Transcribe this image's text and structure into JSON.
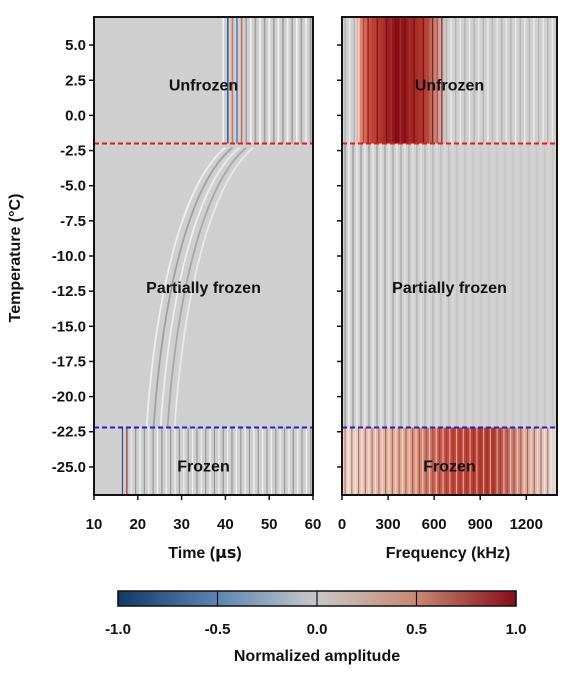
{
  "chart_data": [
    {
      "type": "heatmap",
      "panel": "time",
      "xlabel_prefix": "Time (",
      "xlabel_unit": "μs",
      "xlabel_suffix": ")",
      "ylabel": "Temperature (°C)",
      "xlim": [
        10,
        60
      ],
      "ylim": [
        -27,
        7
      ],
      "xticks": [
        10,
        20,
        30,
        40,
        50,
        60
      ],
      "yticks": [
        5.0,
        2.5,
        0.0,
        -2.5,
        -5.0,
        -7.5,
        -10.0,
        -12.5,
        -15.0,
        -17.5,
        -20.0,
        -22.5,
        -25.0
      ],
      "ytick_labels": [
        "5.0",
        "2.5",
        "0.0",
        "-2.5",
        "-5.0",
        "-7.5",
        "-10.0",
        "-12.5",
        "-15.0",
        "-17.5",
        "-20.0",
        "-22.5",
        "-25.0"
      ],
      "regions": [
        {
          "label": "Unfrozen",
          "y": 2.2
        },
        {
          "label": "Partially frozen",
          "y": -12.2
        },
        {
          "label": "Frozen",
          "y": -24.9
        }
      ],
      "boundaries": [
        {
          "y": -2.0,
          "color": "#e31a1c"
        },
        {
          "y": -22.2,
          "color": "#1f1fd6"
        }
      ]
    },
    {
      "type": "heatmap",
      "panel": "frequency",
      "xlabel": "Frequency (kHz)",
      "xlim": [
        0,
        1400
      ],
      "ylim": [
        -27,
        7
      ],
      "xticks": [
        0,
        300,
        600,
        900,
        1200
      ],
      "regions": [
        {
          "label": "Unfrozen",
          "y": 2.2
        },
        {
          "label": "Partially frozen",
          "y": -12.2
        },
        {
          "label": "Frozen",
          "y": -24.9
        }
      ],
      "boundaries": [
        {
          "y": -2.0,
          "color": "#e31a1c"
        },
        {
          "y": -22.2,
          "color": "#1f1fd6"
        }
      ]
    }
  ],
  "colorbar": {
    "label": "Normalized amplitude",
    "range": [
      -1.0,
      1.0
    ],
    "ticks": [
      -1.0,
      -0.5,
      0.0,
      0.5,
      1.0
    ],
    "tick_labels": [
      "-1.0",
      "-0.5",
      "0.0",
      "0.5",
      "1.0"
    ],
    "colors": [
      "#0f3a66",
      "#5b86b3",
      "#c8c8c8",
      "#c78870",
      "#8a0d17"
    ]
  },
  "colors": {
    "background_gray": "#cfcfcf",
    "red_line": "#e31a1c",
    "blue_line": "#1f1fd6"
  }
}
